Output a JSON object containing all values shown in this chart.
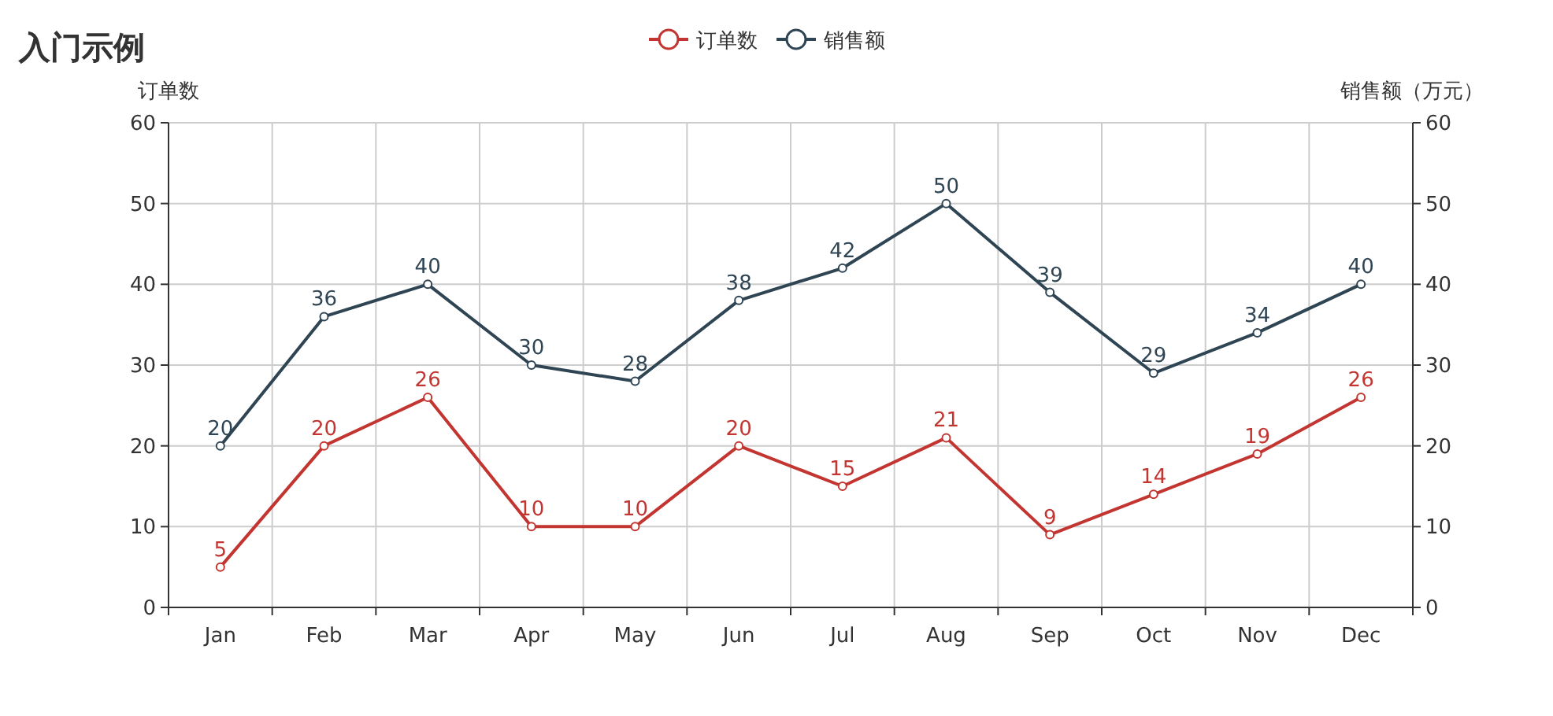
{
  "chart_data": {
    "type": "line",
    "title": "入门示例",
    "categories": [
      "Jan",
      "Feb",
      "Mar",
      "Apr",
      "May",
      "Jun",
      "Jul",
      "Aug",
      "Sep",
      "Oct",
      "Nov",
      "Dec"
    ],
    "series": [
      {
        "name": "订单数",
        "color": "#c23531",
        "values": [
          5,
          20,
          26,
          10,
          10,
          20,
          15,
          21,
          9,
          14,
          19,
          26
        ]
      },
      {
        "name": "销售额",
        "color": "#2f4554",
        "values": [
          20,
          36,
          40,
          30,
          28,
          38,
          42,
          50,
          39,
          29,
          34,
          40
        ]
      }
    ],
    "ylabel": "订单数",
    "y2label": "销售额（万元）",
    "ylim": [
      0,
      60
    ],
    "yticks": [
      0,
      10,
      20,
      30,
      40,
      50,
      60
    ],
    "y2lim": [
      0,
      60
    ],
    "y2ticks": [
      0,
      10,
      20,
      30,
      40,
      50,
      60
    ],
    "data_labels": true,
    "grid": true,
    "legend": "top",
    "marker": "circle",
    "line_style": "solid"
  }
}
